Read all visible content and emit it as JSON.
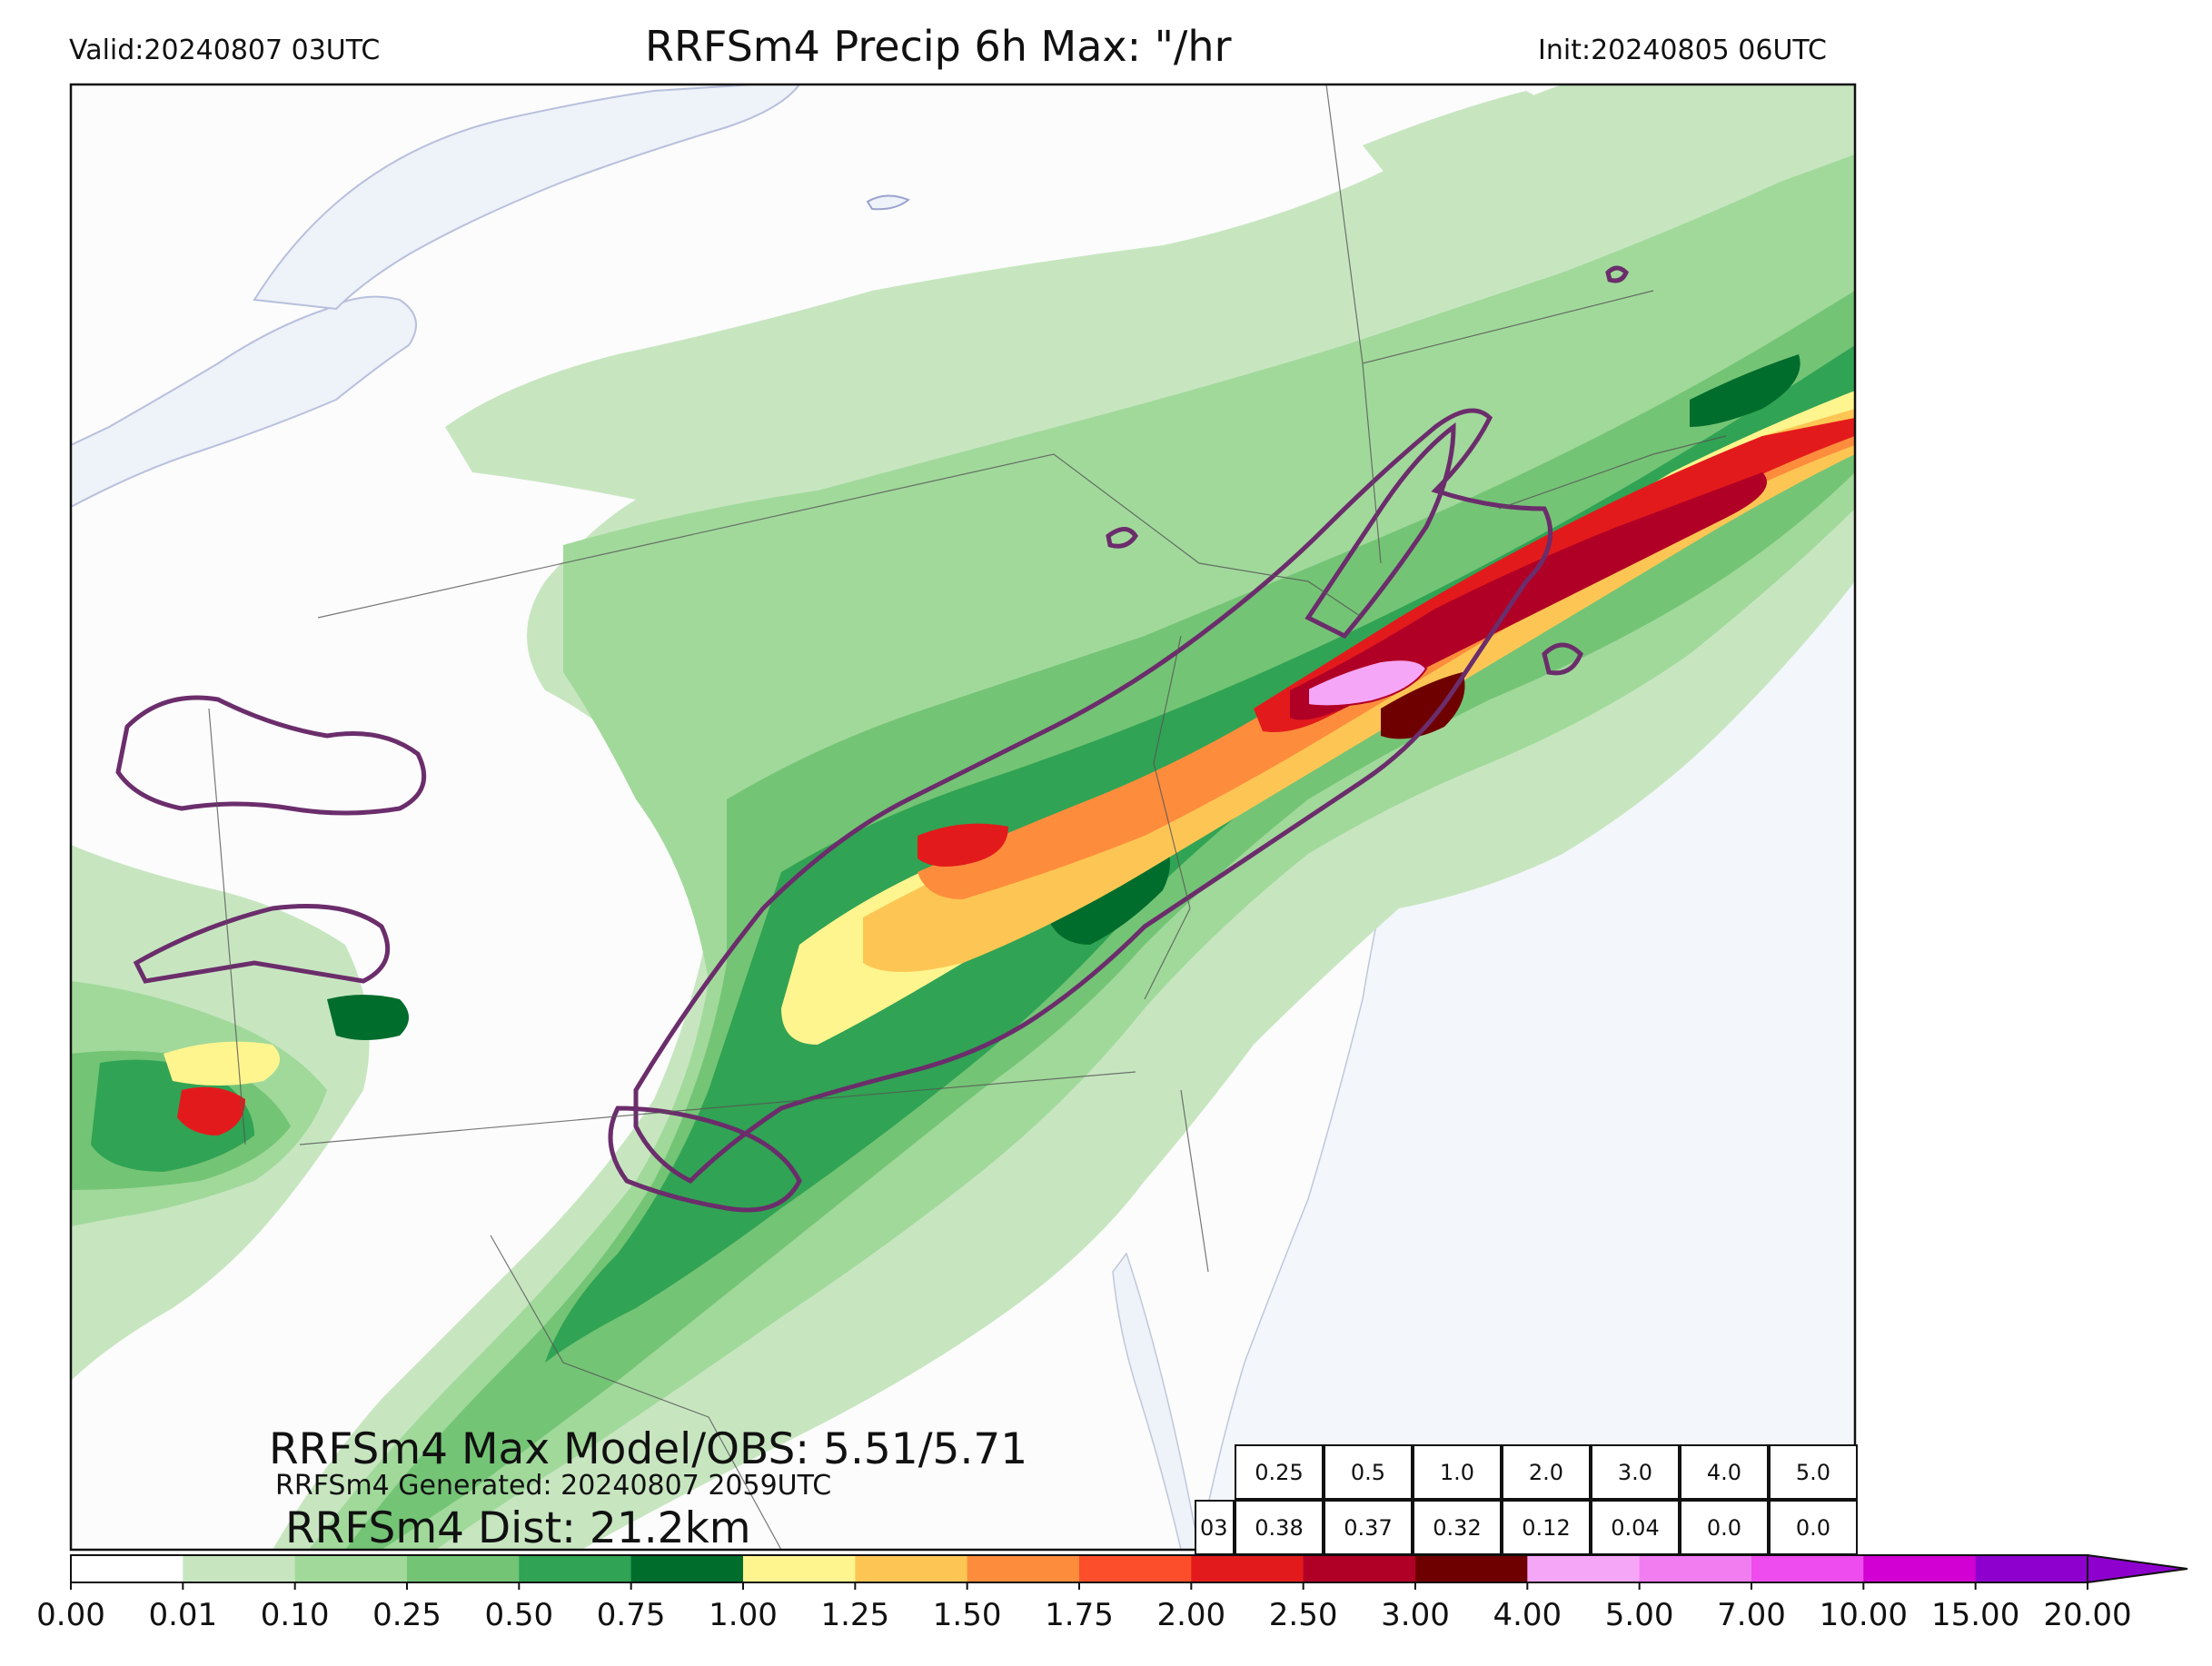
{
  "header": {
    "valid": "Valid:20240807 03UTC",
    "title": "RRFSm4 Precip 6h Max: \"/hr",
    "init": "Init:20240805 06UTC"
  },
  "annotations": {
    "max": "RRFSm4 Max Model/OBS: 5.51/5.71",
    "generated": "RRFSm4 Generated: 20240807 2059UTC",
    "dist": "RRFSm4 Dist: 21.2km"
  },
  "stats_table": {
    "row_label": "03",
    "thresholds": [
      "0.25",
      "0.5",
      "1.0",
      "2.0",
      "3.0",
      "4.0",
      "5.0"
    ],
    "values": [
      "0.38",
      "0.37",
      "0.32",
      "0.12",
      "0.04",
      "0.0",
      "0.0"
    ]
  },
  "colorbar": {
    "ticks": [
      "0.00",
      "0.01",
      "0.10",
      "0.25",
      "0.50",
      "0.75",
      "1.00",
      "1.25",
      "1.50",
      "1.75",
      "2.00",
      "2.50",
      "3.00",
      "4.00",
      "5.00",
      "7.00",
      "10.00",
      "15.00",
      "20.00"
    ],
    "colors": [
      "#ffffff",
      "#c7e6c0",
      "#a1d99b",
      "#74c476",
      "#31a354",
      "#006d2c",
      "#fff58f",
      "#fdc654",
      "#fd8d3c",
      "#fc4e2a",
      "#e31a1c",
      "#b10026",
      "#6e0000",
      "#f6a6f6",
      "#f17df1",
      "#ee4cee",
      "#d200d2",
      "#8e00ce"
    ]
  },
  "map": {
    "background": "#fcfcfc",
    "water": "#eef2f9",
    "contour": "#6b2d6b"
  }
}
